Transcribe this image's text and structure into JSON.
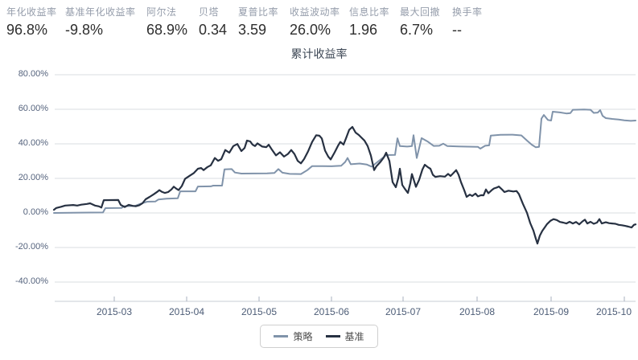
{
  "stats": {
    "items": [
      {
        "label": "年化收益率",
        "value": "96.8%"
      },
      {
        "label": "基准年化收益率",
        "value": "-9.8%"
      },
      {
        "label": "阿尔法",
        "value": "68.9%"
      },
      {
        "label": "贝塔",
        "value": "0.34"
      },
      {
        "label": "夏普比率",
        "value": "3.59"
      },
      {
        "label": "收益波动率",
        "value": "26.0%"
      },
      {
        "label": "信息比率",
        "value": "1.96"
      },
      {
        "label": "最大回撤",
        "value": "6.7%"
      },
      {
        "label": "换手率",
        "value": "--"
      }
    ]
  },
  "theme": {
    "grid_color": "#d9dce1",
    "axis_line_color": "#c7ccd4",
    "tick_color": "#aab2bf",
    "stat_label_color": "#959dab",
    "stat_value_color": "#2e2e2e",
    "legend_border_color": "#cfcfcf"
  },
  "chart_data": {
    "type": "line",
    "title": "累计收益率",
    "xlabel": "",
    "ylabel": "",
    "grid": true,
    "legend_position": "bottom",
    "ylim": [
      -45,
      85
    ],
    "y_ticks": [
      80,
      60,
      40,
      20,
      0,
      -20,
      -40
    ],
    "y_tick_labels": [
      "80.00%",
      "60.00%",
      "40.00%",
      "20.00%",
      "0.00%",
      "-20.00%",
      "-40.00%"
    ],
    "x_tick_labels": [
      "2015-03",
      "2015-04",
      "2015-05",
      "2015-06",
      "2015-07",
      "2015-08",
      "2015-09",
      "2015-10"
    ],
    "value_unit": "percent_cumulative_return",
    "series": [
      {
        "name": "策略",
        "color": "#8093aa",
        "points": [
          [
            67,
            0
          ],
          [
            100,
            0.2
          ],
          [
            128,
            0.3
          ],
          [
            131,
            2.8
          ],
          [
            151,
            2.9
          ],
          [
            154,
            3.9
          ],
          [
            168,
            4.1
          ],
          [
            175,
            5.4
          ],
          [
            183,
            6.5
          ],
          [
            193,
            6.6
          ],
          [
            197,
            7.8
          ],
          [
            207,
            8.3
          ],
          [
            221,
            8.5
          ],
          [
            224,
            12.5
          ],
          [
            243,
            12.5
          ],
          [
            246,
            15.3
          ],
          [
            262,
            15.4
          ],
          [
            265,
            15.8
          ],
          [
            276,
            15.8
          ],
          [
            279,
            25.2
          ],
          [
            288,
            25.4
          ],
          [
            292,
            23.4
          ],
          [
            300,
            22.8
          ],
          [
            332,
            22.9
          ],
          [
            341,
            23.1
          ],
          [
            346,
            25.4
          ],
          [
            351,
            23.3
          ],
          [
            360,
            22.6
          ],
          [
            374,
            22.5
          ],
          [
            382,
            24.8
          ],
          [
            388,
            27.1
          ],
          [
            402,
            27.1
          ],
          [
            412,
            27
          ],
          [
            424,
            27.3
          ],
          [
            429,
            29.5
          ],
          [
            432,
            31.8
          ],
          [
            436,
            28.2
          ],
          [
            447,
            28.6
          ],
          [
            456,
            28
          ],
          [
            462,
            26.8
          ],
          [
            471,
            30.2
          ],
          [
            480,
            33.5
          ],
          [
            491,
            33.6
          ],
          [
            494,
            43.2
          ],
          [
            497,
            38.7
          ],
          [
            506,
            38.4
          ],
          [
            512,
            38.7
          ],
          [
            514,
            45
          ],
          [
            518,
            31.8
          ],
          [
            524,
            43.3
          ],
          [
            532,
            41.2
          ],
          [
            539,
            38.8
          ],
          [
            546,
            38.9
          ],
          [
            551,
            40.1
          ],
          [
            556,
            38.7
          ],
          [
            570,
            38.5
          ],
          [
            594,
            38.3
          ],
          [
            597,
            37.2
          ],
          [
            603,
            38.9
          ],
          [
            608,
            39.1
          ],
          [
            610,
            44.8
          ],
          [
            622,
            45.2
          ],
          [
            637,
            45.3
          ],
          [
            648,
            44.9
          ],
          [
            655,
            41.9
          ],
          [
            661,
            39.5
          ],
          [
            666,
            38
          ],
          [
            670,
            38.3
          ],
          [
            673,
            54.6
          ],
          [
            676,
            56.7
          ],
          [
            681,
            53.8
          ],
          [
            685,
            53.5
          ],
          [
            687,
            58.6
          ],
          [
            696,
            58.2
          ],
          [
            704,
            57.6
          ],
          [
            709,
            57.8
          ],
          [
            712,
            59.7
          ],
          [
            726,
            59.9
          ],
          [
            734,
            59.7
          ],
          [
            738,
            57.9
          ],
          [
            743,
            58.1
          ],
          [
            746,
            59.5
          ],
          [
            749,
            56.2
          ],
          [
            753,
            54.9
          ],
          [
            761,
            54.4
          ],
          [
            769,
            54.1
          ],
          [
            776,
            53.6
          ],
          [
            784,
            53.3
          ],
          [
            790,
            53.5
          ]
        ]
      },
      {
        "name": "基准",
        "color": "#273142",
        "points": [
          [
            67,
            1.8
          ],
          [
            70,
            2.9
          ],
          [
            76,
            3.6
          ],
          [
            81,
            4.3
          ],
          [
            91,
            4.6
          ],
          [
            96,
            4.3
          ],
          [
            101,
            4.8
          ],
          [
            108,
            5.2
          ],
          [
            112,
            5.6
          ],
          [
            118,
            4.3
          ],
          [
            123,
            3.8
          ],
          [
            126,
            3.1
          ],
          [
            129,
            7.4
          ],
          [
            147,
            7.5
          ],
          [
            150,
            4.7
          ],
          [
            155,
            3.4
          ],
          [
            160,
            4.7
          ],
          [
            165,
            4.1
          ],
          [
            169,
            3.9
          ],
          [
            173,
            4.4
          ],
          [
            177,
            5.6
          ],
          [
            181,
            7.9
          ],
          [
            186,
            9.3
          ],
          [
            191,
            10.8
          ],
          [
            196,
            12.4
          ],
          [
            198,
            13.2
          ],
          [
            201,
            12.3
          ],
          [
            205,
            11.6
          ],
          [
            209,
            12.1
          ],
          [
            213,
            13.6
          ],
          [
            216,
            15.2
          ],
          [
            219,
            14.1
          ],
          [
            222,
            13.2
          ],
          [
            226,
            15.6
          ],
          [
            230,
            19.7
          ],
          [
            236,
            21.6
          ],
          [
            241,
            23.1
          ],
          [
            246,
            25.6
          ],
          [
            250,
            26
          ],
          [
            253,
            24.8
          ],
          [
            258,
            26.6
          ],
          [
            262,
            27.6
          ],
          [
            267,
            31.8
          ],
          [
            271,
            30.2
          ],
          [
            275,
            31.1
          ],
          [
            280,
            36.4
          ],
          [
            285,
            34.9
          ],
          [
            290,
            38.7
          ],
          [
            295,
            39.9
          ],
          [
            300,
            35.8
          ],
          [
            304,
            37.6
          ],
          [
            307,
            41.9
          ],
          [
            311,
            41.4
          ],
          [
            314,
            39.5
          ],
          [
            317,
            38.7
          ],
          [
            320,
            40.3
          ],
          [
            326,
            38.4
          ],
          [
            331,
            38.1
          ],
          [
            334,
            39.5
          ],
          [
            338,
            36.6
          ],
          [
            343,
            33.3
          ],
          [
            348,
            35.1
          ],
          [
            353,
            32.6
          ],
          [
            358,
            34.2
          ],
          [
            362,
            36.4
          ],
          [
            366,
            34.1
          ],
          [
            370,
            30.2
          ],
          [
            374,
            28.7
          ],
          [
            378,
            31.2
          ],
          [
            383,
            35.7
          ],
          [
            388,
            41.1
          ],
          [
            393,
            45
          ],
          [
            397,
            44.7
          ],
          [
            400,
            43.1
          ],
          [
            404,
            36.1
          ],
          [
            408,
            32.6
          ],
          [
            411,
            31
          ],
          [
            416,
            35.1
          ],
          [
            420,
            38.8
          ],
          [
            423,
            41.1
          ],
          [
            427,
            39.6
          ],
          [
            430,
            43.1
          ],
          [
            434,
            48.1
          ],
          [
            438,
            49.8
          ],
          [
            442,
            46.5
          ],
          [
            446,
            45.1
          ],
          [
            449,
            43.7
          ],
          [
            453,
            41.9
          ],
          [
            457,
            38.7
          ],
          [
            461,
            33.2
          ],
          [
            465,
            24.8
          ],
          [
            468,
            27.1
          ],
          [
            473,
            29.6
          ],
          [
            477,
            32.1
          ],
          [
            480,
            34.9
          ],
          [
            484,
            30.1
          ],
          [
            488,
            17.8
          ],
          [
            492,
            14.9
          ],
          [
            495,
            20.1
          ],
          [
            497,
            25.6
          ],
          [
            500,
            16.2
          ],
          [
            503,
            14.1
          ],
          [
            507,
            11.6
          ],
          [
            510,
            17.2
          ],
          [
            512,
            22.5
          ],
          [
            515,
            18.1
          ],
          [
            517,
            15.1
          ],
          [
            521,
            19.2
          ],
          [
            525,
            25.1
          ],
          [
            528,
            27.9
          ],
          [
            532,
            26.4
          ],
          [
            535,
            25.6
          ],
          [
            538,
            22.1
          ],
          [
            541,
            20.9
          ],
          [
            547,
            21.3
          ],
          [
            553,
            21
          ],
          [
            557,
            22.6
          ],
          [
            560,
            21.4
          ],
          [
            564,
            23.3
          ],
          [
            567,
            24.8
          ],
          [
            570,
            22.1
          ],
          [
            573,
            17.8
          ],
          [
            577,
            13.2
          ],
          [
            580,
            9.3
          ],
          [
            584,
            10.6
          ],
          [
            587,
            9.8
          ],
          [
            591,
            11.2
          ],
          [
            594,
            9.6
          ],
          [
            598,
            10.3
          ],
          [
            601,
            10.2
          ],
          [
            604,
            13.6
          ],
          [
            607,
            11.4
          ],
          [
            611,
            13.1
          ],
          [
            614,
            14.2
          ],
          [
            618,
            14.8
          ],
          [
            620,
            15.3
          ],
          [
            624,
            13.6
          ],
          [
            627,
            12.1
          ],
          [
            632,
            12.9
          ],
          [
            638,
            12.4
          ],
          [
            642,
            12.7
          ],
          [
            645,
            10.9
          ],
          [
            650,
            5.2
          ],
          [
            655,
            0.1
          ],
          [
            659,
            -5.8
          ],
          [
            663,
            -10.2
          ],
          [
            666,
            -14.9
          ],
          [
            668,
            -17.7
          ],
          [
            671,
            -13.1
          ],
          [
            674,
            -10.4
          ],
          [
            677,
            -8.4
          ],
          [
            680,
            -6.4
          ],
          [
            684,
            -4.6
          ],
          [
            688,
            -3.6
          ],
          [
            692,
            -4.1
          ],
          [
            696,
            -5.2
          ],
          [
            700,
            -5.6
          ],
          [
            704,
            -6.1
          ],
          [
            708,
            -5.1
          ],
          [
            712,
            -6.1
          ],
          [
            716,
            -5.2
          ],
          [
            720,
            -6.6
          ],
          [
            724,
            -4.9
          ],
          [
            727,
            -3.9
          ],
          [
            730,
            -6.1
          ],
          [
            734,
            -5.1
          ],
          [
            738,
            -6.3
          ],
          [
            742,
            -5.6
          ],
          [
            745,
            -3.6
          ],
          [
            748,
            -6.1
          ],
          [
            753,
            -5.4
          ],
          [
            757,
            -5.9
          ],
          [
            761,
            -6.1
          ],
          [
            765,
            -6.3
          ],
          [
            769,
            -6.9
          ],
          [
            773,
            -7.1
          ],
          [
            777,
            -7.5
          ],
          [
            781,
            -7.9
          ],
          [
            785,
            -8.4
          ],
          [
            788,
            -6.9
          ],
          [
            790,
            -6.6
          ]
        ]
      }
    ]
  }
}
